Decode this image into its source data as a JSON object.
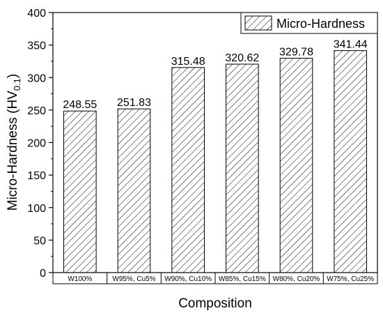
{
  "chart_data": {
    "type": "bar",
    "categories": [
      "W100%",
      "W95%, Cu5%",
      "W90%, Cu10%",
      "W85%, Cu15%",
      "W80%, Cu20%",
      "W75%, Cu25%"
    ],
    "series": [
      {
        "name": "Micro-Hardness",
        "values": [
          248.55,
          251.83,
          315.48,
          320.62,
          329.78,
          341.44
        ],
        "labels": [
          "248.55",
          "251.83",
          "315.48",
          "320.62",
          "329.78",
          "341.44"
        ],
        "fill": "hatched"
      }
    ],
    "xlabel": "Composition",
    "ylabel": "Micro-Hardness (HV",
    "ylabel_subscript": "0.1",
    "ylabel_suffix": ")",
    "ylim": [
      0,
      400
    ],
    "yticks": [
      0,
      50,
      100,
      150,
      200,
      250,
      300,
      350,
      400
    ],
    "grid": false,
    "legend_position": "top-right",
    "colors": {
      "axis": "#000000",
      "bar_stroke": "#000000",
      "hatch": "#000000",
      "background": "#ffffff"
    }
  }
}
